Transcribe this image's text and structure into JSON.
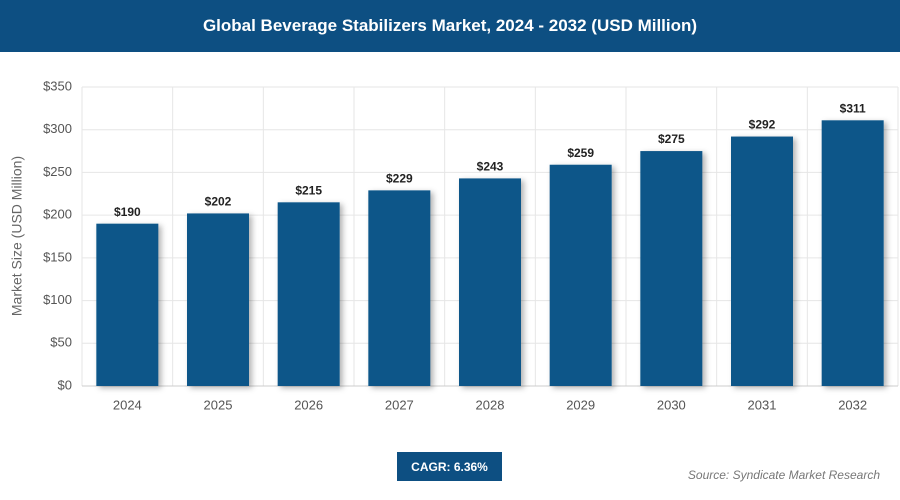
{
  "chart_data": {
    "type": "bar",
    "title": "Global Beverage Stabilizers Market, 2024 - 2032 (USD Million)",
    "y_label": "Market Size (USD Million)",
    "categories": [
      "2024",
      "2025",
      "2026",
      "2027",
      "2028",
      "2029",
      "2030",
      "2031",
      "2032"
    ],
    "values": [
      190,
      202,
      215,
      229,
      243,
      259,
      275,
      292,
      311
    ],
    "value_labels": [
      "$190",
      "$202",
      "$215",
      "$229",
      "$243",
      "$259",
      "$275",
      "$292",
      "$311"
    ],
    "color": "#0b5689",
    "ylim": [
      0,
      350
    ],
    "yticks": [
      {
        "value": 0,
        "label": "$0"
      },
      {
        "value": 50,
        "label": "$50"
      },
      {
        "value": 100,
        "label": "$100"
      },
      {
        "value": 150,
        "label": "$150"
      },
      {
        "value": 200,
        "label": "$200"
      },
      {
        "value": 250,
        "label": "$250"
      },
      {
        "value": 300,
        "label": "$300"
      },
      {
        "value": 350,
        "label": "$350"
      }
    ],
    "grid": true,
    "annotation": "CAGR: 6.36%",
    "source": "Source: Syndicate Market Research"
  }
}
